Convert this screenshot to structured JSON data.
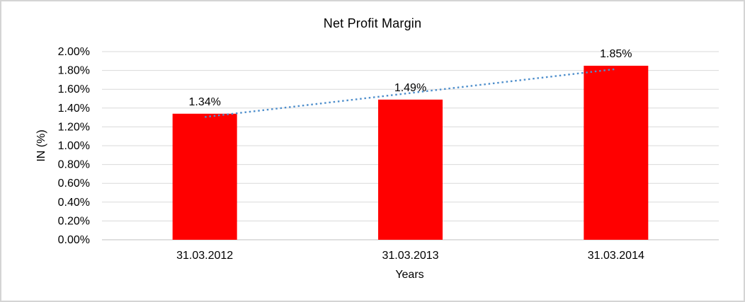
{
  "frame": {
    "background_color": "#ffffff",
    "border_color": "#d4d4d4"
  },
  "chart_data": {
    "type": "bar",
    "title": "Net Profit Margin",
    "xlabel": "Years",
    "ylabel": "IN (%)",
    "categories": [
      "31.03.2012",
      "31.03.2013",
      "31.03.2014"
    ],
    "values": [
      1.34,
      1.49,
      1.85
    ],
    "values_unit": "%",
    "data_labels": [
      "1.34%",
      "1.49%",
      "1.85%"
    ],
    "ylim": [
      0,
      2
    ],
    "y_ticks": [
      {
        "value": 0.0,
        "label": "0.00%"
      },
      {
        "value": 0.2,
        "label": "0.20%"
      },
      {
        "value": 0.4,
        "label": "0.40%"
      },
      {
        "value": 0.6,
        "label": "0.60%"
      },
      {
        "value": 0.8,
        "label": "0.80%"
      },
      {
        "value": 1.0,
        "label": "1.00%"
      },
      {
        "value": 1.2,
        "label": "1.20%"
      },
      {
        "value": 1.4,
        "label": "1.40%"
      },
      {
        "value": 1.6,
        "label": "1.60%"
      },
      {
        "value": 1.8,
        "label": "1.80%"
      },
      {
        "value": 2.0,
        "label": "2.00%"
      }
    ],
    "grid": true,
    "legend": false,
    "bar_color": "#ff0000",
    "gridline_color": "#d9d9d9",
    "axis_line_color": "#bfbfbf",
    "text_color": "#000000",
    "trendline": {
      "type": "linear",
      "style": "dotted",
      "color": "#4f8fcc",
      "start_value": 1.305,
      "end_value": 1.815
    }
  }
}
